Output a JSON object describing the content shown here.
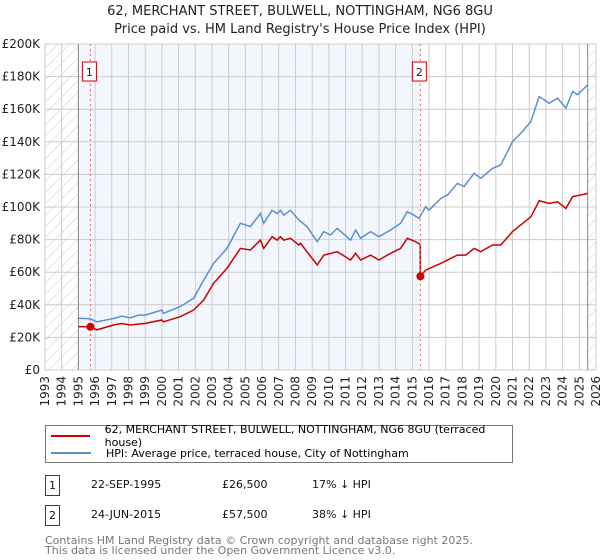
{
  "title_line1": "62, MERCHANT STREET, BULWELL, NOTTINGHAM, NG6 8GU",
  "title_line2": "Price paid vs. HM Land Registry's House Price Index (HPI)",
  "chart_data": {
    "type": "line",
    "title": "62, MERCHANT STREET, BULWELL, NOTTINGHAM, NG6 8GU — Price paid vs. HM Land Registry's House Price Index (HPI)",
    "xlabel": "",
    "ylabel": "",
    "xlim": [
      1993,
      2026
    ],
    "ylim": [
      0,
      200000
    ],
    "x_ticks": [
      "1993",
      "1994",
      "1995",
      "1996",
      "1997",
      "1998",
      "1999",
      "2000",
      "2001",
      "2002",
      "2003",
      "2004",
      "2005",
      "2006",
      "2007",
      "2008",
      "2009",
      "2010",
      "2011",
      "2012",
      "2013",
      "2014",
      "2015",
      "2016",
      "2017",
      "2018",
      "2019",
      "2020",
      "2021",
      "2022",
      "2023",
      "2024",
      "2025",
      "2026"
    ],
    "y_ticks": [
      {
        "v": 0,
        "label": "£0"
      },
      {
        "v": 20000,
        "label": "£20K"
      },
      {
        "v": 40000,
        "label": "£40K"
      },
      {
        "v": 60000,
        "label": "£60K"
      },
      {
        "v": 80000,
        "label": "£80K"
      },
      {
        "v": 100000,
        "label": "£100K"
      },
      {
        "v": 120000,
        "label": "£120K"
      },
      {
        "v": 140000,
        "label": "£140K"
      },
      {
        "v": 160000,
        "label": "£160K"
      },
      {
        "v": 180000,
        "label": "£180K"
      },
      {
        "v": 200000,
        "label": "£200K"
      }
    ],
    "grid": true,
    "legend_position": "below",
    "shaded_range": [
      1995.0,
      2015.48
    ],
    "hatched_before": 1995.0,
    "hatched_after": 2025.5,
    "series": [
      {
        "name": "62, MERCHANT STREET, BULWELL, NOTTINGHAM, NG6 8GU (terraced house)",
        "color": "#cc0000",
        "points": [
          [
            1995.0,
            26600
          ],
          [
            1995.72,
            26500
          ],
          [
            1996.1,
            24600
          ],
          [
            1997.1,
            27600
          ],
          [
            1997.6,
            28500
          ],
          [
            1998.1,
            27600
          ],
          [
            1999.0,
            28600
          ],
          [
            2000.0,
            30700
          ],
          [
            2000.1,
            29600
          ],
          [
            2001.1,
            32700
          ],
          [
            2001.9,
            36800
          ],
          [
            2002.5,
            42900
          ],
          [
            2003.1,
            53200
          ],
          [
            2003.9,
            62400
          ],
          [
            2004.7,
            74600
          ],
          [
            2005.3,
            73600
          ],
          [
            2005.9,
            79700
          ],
          [
            2006.1,
            74600
          ],
          [
            2006.6,
            81800
          ],
          [
            2006.9,
            79700
          ],
          [
            2007.1,
            81800
          ],
          [
            2007.3,
            79700
          ],
          [
            2007.7,
            80800
          ],
          [
            2008.2,
            76700
          ],
          [
            2008.3,
            77700
          ],
          [
            2009.3,
            64400
          ],
          [
            2009.7,
            70500
          ],
          [
            2010.5,
            72600
          ],
          [
            2011.3,
            67500
          ],
          [
            2011.6,
            71600
          ],
          [
            2011.9,
            67500
          ],
          [
            2012.5,
            70500
          ],
          [
            2013.0,
            67500
          ],
          [
            2013.7,
            71600
          ],
          [
            2014.3,
            74600
          ],
          [
            2014.7,
            80800
          ],
          [
            2015.2,
            78700
          ],
          [
            2015.47,
            77000
          ],
          [
            2015.48,
            57500
          ],
          [
            2015.8,
            61300
          ],
          [
            2016.7,
            65400
          ],
          [
            2017.7,
            70500
          ],
          [
            2018.2,
            70500
          ],
          [
            2018.7,
            74600
          ],
          [
            2019.1,
            72600
          ],
          [
            2019.8,
            76700
          ],
          [
            2020.3,
            76700
          ],
          [
            2021.0,
            84900
          ],
          [
            2022.1,
            94000
          ],
          [
            2022.6,
            103800
          ],
          [
            2023.2,
            102200
          ],
          [
            2023.7,
            103200
          ],
          [
            2024.2,
            99100
          ],
          [
            2024.6,
            106300
          ],
          [
            2025.5,
            108300
          ]
        ]
      },
      {
        "name": "HPI: Average price, terraced house, City of Nottingham",
        "color": "#5b8fd0",
        "points": [
          [
            1995.0,
            31700
          ],
          [
            1995.7,
            31500
          ],
          [
            1996.1,
            29600
          ],
          [
            1997.1,
            31600
          ],
          [
            1997.6,
            33000
          ],
          [
            1998.1,
            32000
          ],
          [
            1998.6,
            33700
          ],
          [
            1999.0,
            33700
          ],
          [
            2000.0,
            36800
          ],
          [
            2000.1,
            34800
          ],
          [
            2001.1,
            38900
          ],
          [
            2001.9,
            44000
          ],
          [
            2002.5,
            55000
          ],
          [
            2003.1,
            65400
          ],
          [
            2003.9,
            74600
          ],
          [
            2004.7,
            90000
          ],
          [
            2005.3,
            88000
          ],
          [
            2005.9,
            96000
          ],
          [
            2006.1,
            90000
          ],
          [
            2006.6,
            98000
          ],
          [
            2006.9,
            96000
          ],
          [
            2007.1,
            98000
          ],
          [
            2007.3,
            95000
          ],
          [
            2007.7,
            98000
          ],
          [
            2008.2,
            92000
          ],
          [
            2008.7,
            87900
          ],
          [
            2009.3,
            78700
          ],
          [
            2009.7,
            84900
          ],
          [
            2010.1,
            82800
          ],
          [
            2010.5,
            86900
          ],
          [
            2011.3,
            79700
          ],
          [
            2011.6,
            85900
          ],
          [
            2011.9,
            80800
          ],
          [
            2012.5,
            84900
          ],
          [
            2013.0,
            81800
          ],
          [
            2013.7,
            85900
          ],
          [
            2014.3,
            90000
          ],
          [
            2014.7,
            97100
          ],
          [
            2015.1,
            95000
          ],
          [
            2015.4,
            93000
          ],
          [
            2015.8,
            100200
          ],
          [
            2016.0,
            98000
          ],
          [
            2016.7,
            105200
          ],
          [
            2017.1,
            107300
          ],
          [
            2017.7,
            114500
          ],
          [
            2018.1,
            112500
          ],
          [
            2018.7,
            120700
          ],
          [
            2019.1,
            117600
          ],
          [
            2019.8,
            123700
          ],
          [
            2020.3,
            125800
          ],
          [
            2021.0,
            140100
          ],
          [
            2021.6,
            146300
          ],
          [
            2022.1,
            152500
          ],
          [
            2022.6,
            167800
          ],
          [
            2023.2,
            163700
          ],
          [
            2023.7,
            166800
          ],
          [
            2024.2,
            160700
          ],
          [
            2024.6,
            170900
          ],
          [
            2024.9,
            168900
          ],
          [
            2025.5,
            175000
          ]
        ]
      }
    ],
    "annotations": [
      {
        "label": "1",
        "x": 1995.72,
        "y": 26500
      },
      {
        "label": "2",
        "x": 2015.48,
        "y": 57500
      }
    ]
  },
  "legend": {
    "property_label": "62, MERCHANT STREET, BULWELL, NOTTINGHAM, NG6 8GU (terraced house)",
    "hpi_label": "HPI: Average price, terraced house, City of Nottingham"
  },
  "sales": [
    {
      "num": "1",
      "date": "22-SEP-1995",
      "price": "£26,500",
      "diff": "17% ↓ HPI"
    },
    {
      "num": "2",
      "date": "24-JUN-2015",
      "price": "£57,500",
      "diff": "38% ↓ HPI"
    }
  ],
  "footer": {
    "line1": "Contains HM Land Registry data © Crown copyright and database right 2025.",
    "line2": "This data is licensed under the Open Government Licence v3.0."
  }
}
